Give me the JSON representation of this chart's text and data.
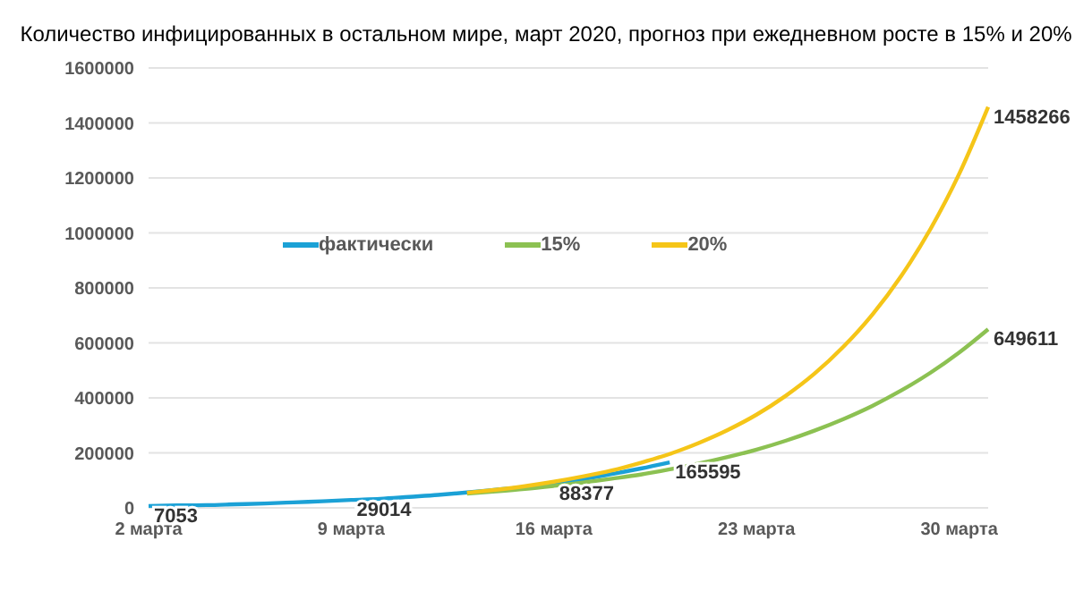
{
  "chart_data": {
    "type": "line",
    "title": "Количество инфицированных в остальном мире, март 2020, прогноз при ежедневном росте в 15% и 20%",
    "categories": [
      "2 марта",
      null,
      null,
      null,
      null,
      null,
      null,
      "9 марта",
      null,
      null,
      null,
      null,
      null,
      null,
      "16 марта",
      null,
      null,
      null,
      null,
      null,
      null,
      "23 марта",
      null,
      null,
      null,
      null,
      null,
      null,
      "30 марта",
      null
    ],
    "series": [
      {
        "name": "фактически",
        "color": "#1ba1d6",
        "values": [
          7053,
          9000,
          10000,
          13000,
          16000,
          20000,
          24000,
          29014,
          33000,
          40000,
          47000,
          56000,
          66000,
          76000,
          88377,
          104000,
          123000,
          143000,
          165595,
          null,
          null,
          null,
          null,
          null,
          null,
          null,
          null,
          null,
          null,
          null
        ],
        "value_labels": [
          "7053",
          null,
          null,
          null,
          null,
          null,
          null,
          "29014",
          null,
          null,
          null,
          null,
          null,
          null,
          "88377",
          null,
          null,
          null,
          "165595",
          null,
          null,
          null,
          null,
          null,
          null,
          null,
          null,
          null,
          null,
          null
        ]
      },
      {
        "name": "15%",
        "color": "#8cc152",
        "values": [
          null,
          null,
          null,
          null,
          null,
          null,
          null,
          null,
          null,
          null,
          null,
          52000,
          60000,
          69000,
          80000,
          92000,
          106000,
          121000,
          140000,
          161000,
          185000,
          212000,
          244000,
          281000,
          323000,
          371000,
          427000,
          491000,
          565000,
          649611
        ],
        "value_labels": [
          null,
          null,
          null,
          null,
          null,
          null,
          null,
          null,
          null,
          null,
          null,
          null,
          null,
          null,
          null,
          null,
          null,
          null,
          null,
          null,
          null,
          null,
          null,
          null,
          null,
          null,
          null,
          null,
          null,
          "649611"
        ]
      },
      {
        "name": "20%",
        "color": "#f5c518",
        "values": [
          null,
          null,
          null,
          null,
          null,
          null,
          null,
          null,
          null,
          null,
          null,
          55000,
          66000,
          79000,
          95000,
          114000,
          136000,
          164000,
          196000,
          236000,
          283000,
          339000,
          407000,
          488000,
          586000,
          703000,
          844000,
          1013000,
          1215000,
          1458266
        ],
        "value_labels": [
          null,
          null,
          null,
          null,
          null,
          null,
          null,
          null,
          null,
          null,
          null,
          null,
          null,
          null,
          null,
          null,
          null,
          null,
          null,
          null,
          null,
          null,
          null,
          null,
          null,
          null,
          null,
          null,
          null,
          "1458266"
        ]
      }
    ],
    "ylim": [
      0,
      1600000
    ],
    "yticks": [
      0,
      200000,
      400000,
      600000,
      800000,
      1000000,
      1200000,
      1400000,
      1600000
    ],
    "grid": "y",
    "legend": "left",
    "marker": "none",
    "line_style": "solid"
  }
}
